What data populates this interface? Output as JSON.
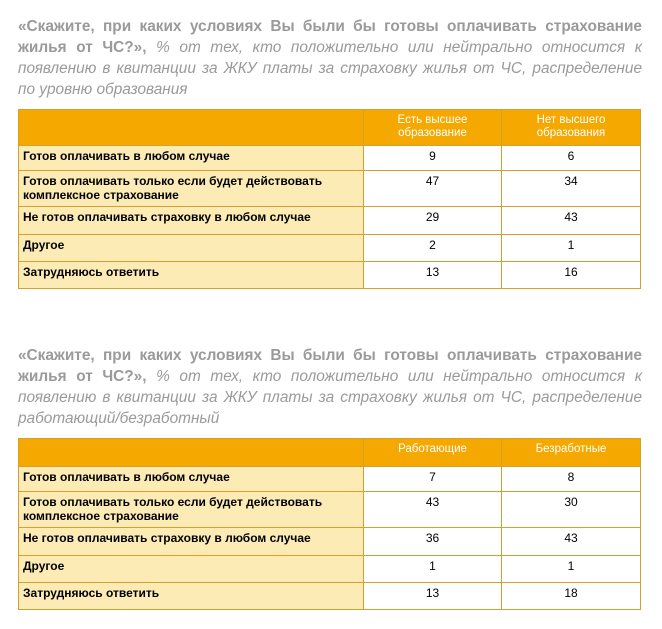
{
  "tables": [
    {
      "question": "«Скажите, при каких условиях Вы были бы готовы оплачивать страхование жилья от ЧС?»,",
      "subtitle": "% от тех, кто положительно или нейтрально относится к появлению в квитанции за ЖКУ платы за страховку жилья от ЧС, распределение по уровню образования",
      "columns": [
        "Есть высшее образование",
        "Нет высшего образования"
      ],
      "rows": [
        {
          "label": "Готов оплачивать в любом случае",
          "values": [
            "9",
            "6"
          ]
        },
        {
          "label": "Готов оплачивать только если будет действовать комплексное страхование",
          "values": [
            "47",
            "34"
          ]
        },
        {
          "label": "Не готов оплачивать страховку в любом случае",
          "values": [
            "29",
            "43"
          ]
        },
        {
          "label": "Другое",
          "values": [
            "2",
            "1"
          ]
        },
        {
          "label": "Затрудняюсь ответить",
          "values": [
            "13",
            "16"
          ]
        }
      ]
    },
    {
      "question": "«Скажите, при каких условиях Вы были бы готовы оплачивать страхование жилья от ЧС?»,",
      "subtitle": "% от тех, кто положительно или нейтрально относится к появлению в квитанции за ЖКУ платы за страховку жилья от ЧС, распределение работающий/безработный",
      "columns": [
        "Работающие",
        "Безработные"
      ],
      "rows": [
        {
          "label": "Готов оплачивать в любом случае",
          "values": [
            "7",
            "8"
          ]
        },
        {
          "label": "Готов оплачивать только если будет действовать комплексное страхование",
          "values": [
            "43",
            "30"
          ]
        },
        {
          "label": "Не готов оплачивать страховку в любом случае",
          "values": [
            "36",
            "43"
          ]
        },
        {
          "label": "Другое",
          "values": [
            "1",
            "1"
          ]
        },
        {
          "label": "Затрудняюсь ответить",
          "values": [
            "13",
            "18"
          ]
        }
      ]
    }
  ]
}
